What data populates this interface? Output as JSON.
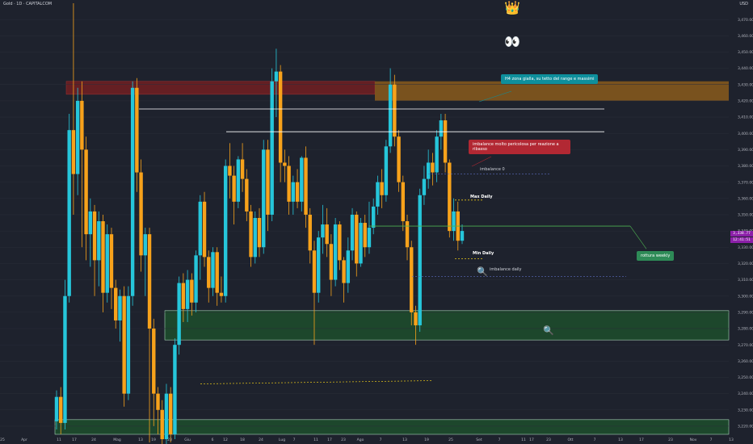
{
  "header": {
    "symbol_title": "Gold · 1D · CAPITALCOM",
    "currency": "USD"
  },
  "colors": {
    "background": "#1e222d",
    "bull": "#26c6da",
    "bear": "#f7a21b",
    "axis_text": "#b2b5be",
    "grid": "#2a2e39",
    "red_zone": "#6d1f22",
    "orange_zone": "#8a5a1c",
    "green_zone": "#1d4a2c",
    "ann_teal": "#0e8f9c",
    "ann_red": "#b22833",
    "ann_green": "#2e8b57",
    "price_tag": "#8b1fa8"
  },
  "annotations": {
    "h4_note": "H4 zona gialla, su tetto del range e massimi",
    "imbalance_note": "imbalance molto pericolosa per reazione a ribasso",
    "rottura": "rottura weekly",
    "imbalance0": "imbalance 0",
    "max_daily": "Max Daily",
    "min_daily": "Min Daily",
    "imbalance_daily": "imbalance daily"
  },
  "icons": {
    "crown": "crown-icon",
    "eyes": "eyes-icon",
    "magnifier": "magnifier-icon"
  },
  "current_price": {
    "value": "3,338.77",
    "countdown": "12:41:51"
  },
  "chart_data": {
    "type": "candlestick",
    "title": "Gold · 1D · CAPITALCOM",
    "ylim": [
      3215,
      3480
    ],
    "y_ticks": [
      "3,470.00",
      "3,460.00",
      "3,450.00",
      "3,440.00",
      "3,430.00",
      "3,420.00",
      "3,410.00",
      "3,400.00",
      "3,390.00",
      "3,380.00",
      "3,370.00",
      "3,360.00",
      "3,350.00",
      "3,340.00",
      "3,330.00",
      "3,320.00",
      "3,310.00",
      "3,300.00",
      "3,290.00",
      "3,280.00",
      "3,270.00",
      "3,260.00",
      "3,250.00",
      "3,240.00",
      "3,230.00",
      "3,220.00"
    ],
    "x_ticks": [
      "25",
      "Apr",
      "11",
      "17",
      "24",
      "Mag",
      "13",
      "19",
      "23",
      "Giu",
      "6",
      "12",
      "18",
      "24",
      "Lug",
      "7",
      "11",
      "17",
      "23",
      "Ago",
      "7",
      "13",
      "19",
      "25",
      "Set",
      "7",
      "11",
      "17",
      "23",
      "Ott",
      "7",
      "13",
      "17",
      "23",
      "Nov",
      "7",
      "13"
    ],
    "candles": [
      [
        3223,
        3238,
        3218,
        3242
      ],
      [
        3238,
        3222,
        3215,
        3244
      ],
      [
        3222,
        3300,
        3218,
        3310
      ],
      [
        3300,
        3402,
        3296,
        3412
      ],
      [
        3402,
        3375,
        3350,
        3480
      ],
      [
        3375,
        3420,
        3362,
        3428
      ],
      [
        3420,
        3390,
        3330,
        3432
      ],
      [
        3390,
        3338,
        3322,
        3398
      ],
      [
        3338,
        3352,
        3318,
        3360
      ],
      [
        3352,
        3322,
        3300,
        3356
      ],
      [
        3322,
        3346,
        3306,
        3352
      ],
      [
        3346,
        3302,
        3290,
        3350
      ],
      [
        3302,
        3338,
        3296,
        3344
      ],
      [
        3338,
        3305,
        3292,
        3342
      ],
      [
        3305,
        3285,
        3280,
        3310
      ],
      [
        3285,
        3300,
        3272,
        3304
      ],
      [
        3300,
        3240,
        3232,
        3306
      ],
      [
        3240,
        3300,
        3236,
        3306
      ],
      [
        3300,
        3428,
        3294,
        3432
      ],
      [
        3428,
        3376,
        3364,
        3434
      ],
      [
        3376,
        3325,
        3315,
        3384
      ],
      [
        3325,
        3338,
        3300,
        3342
      ],
      [
        3338,
        3280,
        3210,
        3342
      ],
      [
        3280,
        3240,
        3220,
        3286
      ],
      [
        3240,
        3230,
        3215,
        3244
      ],
      [
        3230,
        3212,
        3208,
        3236
      ],
      [
        3212,
        3240,
        3208,
        3246
      ],
      [
        3240,
        3215,
        3210,
        3244
      ],
      [
        3215,
        3270,
        3212,
        3274
      ],
      [
        3270,
        3308,
        3264,
        3312
      ],
      [
        3308,
        3292,
        3284,
        3314
      ],
      [
        3292,
        3310,
        3284,
        3316
      ],
      [
        3310,
        3296,
        3288,
        3314
      ],
      [
        3296,
        3325,
        3290,
        3328
      ],
      [
        3325,
        3358,
        3310,
        3362
      ],
      [
        3358,
        3324,
        3318,
        3364
      ],
      [
        3324,
        3305,
        3296,
        3328
      ],
      [
        3305,
        3327,
        3300,
        3330
      ],
      [
        3327,
        3302,
        3294,
        3330
      ],
      [
        3302,
        3300,
        3296,
        3312
      ],
      [
        3300,
        3380,
        3296,
        3384
      ],
      [
        3380,
        3374,
        3360,
        3394
      ],
      [
        3374,
        3358,
        3344,
        3380
      ],
      [
        3358,
        3384,
        3354,
        3386
      ],
      [
        3384,
        3372,
        3364,
        3394
      ],
      [
        3372,
        3352,
        3346,
        3378
      ],
      [
        3352,
        3324,
        3318,
        3356
      ],
      [
        3324,
        3348,
        3320,
        3352
      ],
      [
        3348,
        3330,
        3324,
        3354
      ],
      [
        3330,
        3390,
        3326,
        3396
      ],
      [
        3390,
        3350,
        3340,
        3396
      ],
      [
        3350,
        3432,
        3346,
        3440
      ],
      [
        3432,
        3438,
        3410,
        3452
      ],
      [
        3438,
        3382,
        3370,
        3442
      ],
      [
        3382,
        3380,
        3370,
        3390
      ],
      [
        3380,
        3358,
        3350,
        3386
      ],
      [
        3358,
        3370,
        3350,
        3374
      ],
      [
        3370,
        3358,
        3354,
        3378
      ],
      [
        3358,
        3385,
        3352,
        3386
      ],
      [
        3385,
        3350,
        3342,
        3392
      ],
      [
        3350,
        3328,
        3320,
        3354
      ],
      [
        3328,
        3302,
        3270,
        3334
      ],
      [
        3302,
        3336,
        3296,
        3340
      ],
      [
        3336,
        3344,
        3326,
        3356
      ],
      [
        3344,
        3332,
        3324,
        3354
      ],
      [
        3332,
        3310,
        3300,
        3338
      ],
      [
        3310,
        3344,
        3306,
        3348
      ],
      [
        3344,
        3322,
        3316,
        3346
      ],
      [
        3322,
        3308,
        3296,
        3324
      ],
      [
        3308,
        3328,
        3302,
        3336
      ],
      [
        3328,
        3350,
        3322,
        3354
      ],
      [
        3350,
        3320,
        3312,
        3352
      ],
      [
        3320,
        3345,
        3318,
        3348
      ],
      [
        3345,
        3330,
        3324,
        3350
      ],
      [
        3330,
        3342,
        3326,
        3358
      ],
      [
        3342,
        3355,
        3338,
        3360
      ],
      [
        3355,
        3370,
        3350,
        3374
      ],
      [
        3370,
        3362,
        3354,
        3378
      ],
      [
        3362,
        3392,
        3358,
        3396
      ],
      [
        3392,
        3430,
        3388,
        3440
      ],
      [
        3430,
        3398,
        3392,
        3436
      ],
      [
        3398,
        3370,
        3364,
        3402
      ],
      [
        3370,
        3346,
        3340,
        3374
      ],
      [
        3346,
        3330,
        3322,
        3350
      ],
      [
        3330,
        3290,
        3282,
        3334
      ],
      [
        3290,
        3282,
        3270,
        3294
      ],
      [
        3282,
        3362,
        3278,
        3366
      ],
      [
        3362,
        3372,
        3356,
        3380
      ],
      [
        3372,
        3382,
        3366,
        3390
      ],
      [
        3382,
        3376,
        3368,
        3388
      ],
      [
        3376,
        3398,
        3370,
        3402
      ],
      [
        3398,
        3408,
        3390,
        3412
      ],
      [
        3408,
        3382,
        3376,
        3412
      ],
      [
        3382,
        3340,
        3336,
        3384
      ],
      [
        3340,
        3352,
        3334,
        3360
      ],
      [
        3352,
        3334,
        3328,
        3358
      ],
      [
        3334,
        3340,
        3332,
        3344
      ]
    ]
  }
}
